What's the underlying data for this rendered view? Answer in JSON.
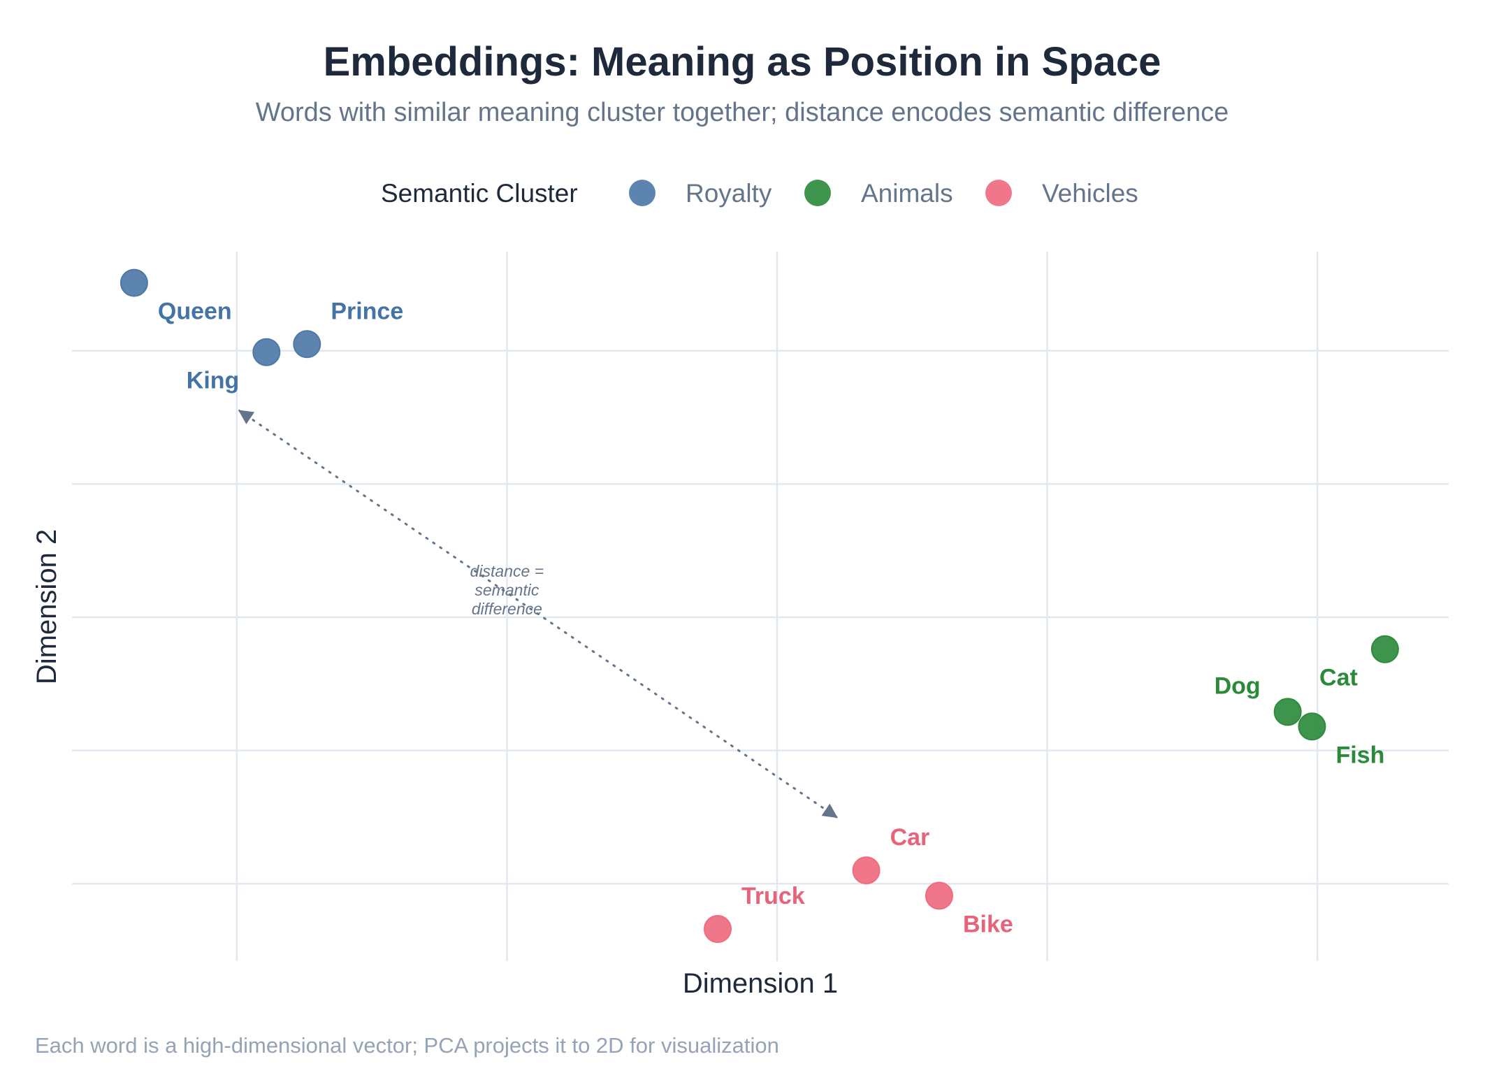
{
  "chart_data": {
    "type": "scatter",
    "title": "Embeddings: Meaning as Position in Space",
    "subtitle": "Words with similar meaning cluster together; distance encodes semantic difference",
    "xlabel": "Dimension 1",
    "ylabel": "Dimension 2",
    "caption": "Each word is a high-dimensional vector; PCA projects it to 2D for visualization",
    "xlim": [
      -2.62,
      2.55
    ],
    "ylim": [
      -2.6,
      2.75
    ],
    "x_gridlines": [
      -2,
      -1,
      0,
      1,
      2
    ],
    "y_gridlines": [
      -2,
      -1,
      0,
      1,
      2
    ],
    "tick_labels_visible": false,
    "grid": true,
    "legend": {
      "title": "Semantic Cluster",
      "placement": "top-center",
      "entries": [
        {
          "name": "Royalty",
          "color": "#4e79a7"
        },
        {
          "name": "Animals",
          "color": "#2e8b3e"
        },
        {
          "name": "Vehicles",
          "color": "#ef6b7f"
        }
      ]
    },
    "series": [
      {
        "name": "Royalty",
        "color": "#4e79a7",
        "label_color": "#4374a5",
        "points": [
          {
            "label": "Queen",
            "x": -2.38,
            "y": 2.51,
            "label_pos": "below-right"
          },
          {
            "label": "King",
            "x": -1.89,
            "y": 1.99,
            "label_pos": "below-left"
          },
          {
            "label": "Prince",
            "x": -1.74,
            "y": 2.05,
            "label_pos": "above-right"
          }
        ]
      },
      {
        "name": "Animals",
        "color": "#2e8b3e",
        "label_color": "#2a8a37",
        "points": [
          {
            "label": "Dog",
            "x": 1.89,
            "y": -0.71,
            "label_pos": "above-left"
          },
          {
            "label": "Fish",
            "x": 1.98,
            "y": -0.82,
            "label_pos": "below-right"
          },
          {
            "label": "Cat",
            "x": 2.25,
            "y": -0.24,
            "label_pos": "below-left"
          }
        ]
      },
      {
        "name": "Vehicles",
        "color": "#ef6b7f",
        "label_color": "#e8627a",
        "points": [
          {
            "label": "Car",
            "x": 0.33,
            "y": -1.9,
            "label_pos": "above-right"
          },
          {
            "label": "Bike",
            "x": 0.6,
            "y": -2.09,
            "label_pos": "below-right"
          },
          {
            "label": "Truck",
            "x": -0.22,
            "y": -2.34,
            "label_pos": "above-right"
          }
        ]
      }
    ],
    "annotation": {
      "text_lines": [
        "distance =",
        "semantic",
        "difference"
      ],
      "x": -1.0,
      "y": 0.19,
      "arrow": {
        "from": [
          0.22,
          -1.5
        ],
        "to": [
          -1.99,
          1.55
        ],
        "style": "dotted",
        "double_headed": true,
        "color": "#64748b"
      }
    }
  }
}
